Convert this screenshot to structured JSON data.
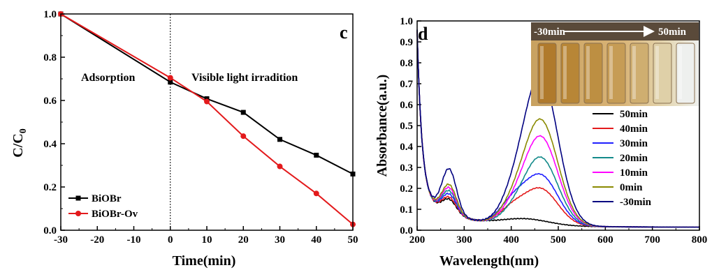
{
  "chart_data": [
    {
      "type": "line",
      "panel_label": "c",
      "xlabel": "Time(min)",
      "ylabel": "C/C",
      "ylabel_sub": "0",
      "xlim": [
        -30,
        50
      ],
      "ylim": [
        0,
        1.0
      ],
      "xticks": [
        "-30",
        "-20",
        "-10",
        "0",
        "10",
        "20",
        "30",
        "40",
        "50"
      ],
      "yticks": [
        "0.0",
        "0.2",
        "0.4",
        "0.6",
        "0.8",
        "1.0"
      ],
      "annotations": [
        "Adsorption",
        "Visible light irradition"
      ],
      "divider_x": 0,
      "legend_position": "bottom-left",
      "series": [
        {
          "name": "BiOBr",
          "color": "#000000",
          "marker": "square",
          "x": [
            -30,
            0,
            10,
            20,
            30,
            40,
            50
          ],
          "y": [
            1.0,
            0.685,
            0.608,
            0.545,
            0.42,
            0.347,
            0.26
          ]
        },
        {
          "name": "BiOBr-Ov",
          "color": "#e31a1c",
          "marker": "circle",
          "x": [
            -30,
            0,
            10,
            20,
            30,
            40,
            50
          ],
          "y": [
            1.0,
            0.705,
            0.595,
            0.435,
            0.295,
            0.17,
            0.027
          ]
        }
      ]
    },
    {
      "type": "line",
      "panel_label": "d",
      "xlabel": "Wavelength(nm)",
      "ylabel": "Absorbance(a.u.)",
      "xlim": [
        200,
        800
      ],
      "ylim": [
        0,
        1.0
      ],
      "xticks": [
        "200",
        "300",
        "400",
        "500",
        "600",
        "700",
        "800"
      ],
      "yticks": [
        "0.0",
        "0.1",
        "0.2",
        "0.3",
        "0.4",
        "0.5",
        "0.6",
        "0.7",
        "0.8",
        "0.9",
        "1.0"
      ],
      "inset": {
        "start_label": "-30min",
        "end_label": "50min"
      },
      "legend_position": "right",
      "series": [
        {
          "name": "50min",
          "color": "#000000",
          "peak1": 0.12,
          "peak2": 0.03
        },
        {
          "name": "40min",
          "color": "#e31a1c",
          "peak1": 0.13,
          "peak2": 0.175
        },
        {
          "name": "30min",
          "color": "#1f1fff",
          "peak1": 0.145,
          "peak2": 0.24
        },
        {
          "name": "20min",
          "color": "#138a8a",
          "peak1": 0.16,
          "peak2": 0.325
        },
        {
          "name": "10min",
          "color": "#ff00ff",
          "peak1": 0.175,
          "peak2": 0.425
        },
        {
          "name": "0min",
          "color": "#8a8a00",
          "peak1": 0.19,
          "peak2": 0.505
        },
        {
          "name": "-30min",
          "color": "#000080",
          "peak1": 0.265,
          "peak2": 0.715
        }
      ]
    }
  ]
}
